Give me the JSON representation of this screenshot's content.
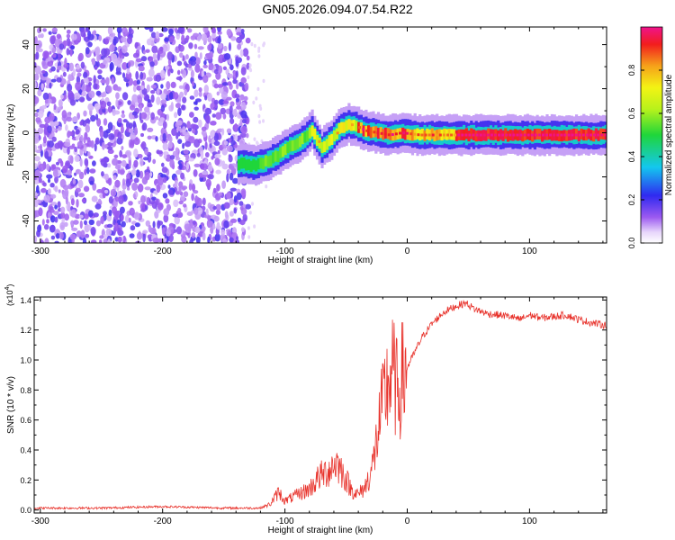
{
  "title": "GN05.2026.094.07.54.R22",
  "colorbar": {
    "label": "Normalized spectral amplitude",
    "ticks": [
      "0.0",
      "0.2",
      "0.4",
      "0.6",
      "0.8"
    ],
    "range": [
      0,
      1
    ]
  },
  "chart_data": [
    {
      "type": "heatmap",
      "xlabel": "Height of straight line (km)",
      "ylabel": "Frequency (Hz)",
      "xlim": [
        -305,
        163
      ],
      "ylim": [
        -50,
        48
      ],
      "xticks": [
        "-300",
        "-200",
        "-100",
        "0",
        "100"
      ],
      "yticks": [
        "40",
        "20",
        "0",
        "-20",
        "-40"
      ],
      "ridge": {
        "x": [
          -136,
          -125,
          -115,
          -105,
          -95,
          -85,
          -78,
          -70,
          -62,
          -55,
          -48,
          -42,
          -35,
          -25,
          -15,
          -5,
          10,
          30,
          60,
          90,
          120,
          163
        ],
        "y": [
          -14,
          -15,
          -13,
          -10,
          -6,
          -3,
          1,
          -7,
          -3,
          2,
          4,
          3,
          1,
          0,
          -1,
          0,
          -1,
          -1,
          -1,
          -1,
          -1,
          -1
        ]
      },
      "noise_region_x": [
        -305,
        -130
      ],
      "noise_region_y": [
        -50,
        48
      ]
    },
    {
      "type": "line",
      "xlabel": "Height of straight line (km)",
      "ylabel": "SNR (10 * v/v)",
      "multiplier": "(x10",
      "multiplier_exp": "4",
      "xlim": [
        -305,
        163
      ],
      "ylim": [
        -0.02,
        1.42
      ],
      "xticks": [
        "-300",
        "-200",
        "-100",
        "0",
        "100"
      ],
      "yticks": [
        "0.0",
        "0.2",
        "0.4",
        "0.6",
        "0.8",
        "1.0",
        "1.2",
        "1.4"
      ],
      "series": [
        {
          "color": "#e8332c",
          "x": [
            -305,
            -250,
            -200,
            -150,
            -120,
            -112,
            -105,
            -100,
            -90,
            -80,
            -72,
            -65,
            -58,
            -52,
            -46,
            -40,
            -34,
            -28,
            -24,
            -20,
            -16,
            -12,
            -8,
            -4,
            0,
            6,
            12,
            20,
            30,
            40,
            48,
            55,
            65,
            75,
            85,
            92,
            100,
            110,
            120,
            130,
            140,
            150,
            163
          ],
          "y": [
            0.01,
            0.01,
            0.02,
            0.01,
            0.01,
            0.04,
            0.12,
            0.06,
            0.1,
            0.14,
            0.22,
            0.26,
            0.32,
            0.24,
            0.14,
            0.1,
            0.16,
            0.3,
            0.52,
            0.7,
            0.84,
            0.92,
            0.78,
            0.88,
            0.95,
            1.05,
            1.15,
            1.24,
            1.32,
            1.36,
            1.38,
            1.34,
            1.31,
            1.3,
            1.29,
            1.27,
            1.3,
            1.28,
            1.29,
            1.3,
            1.27,
            1.25,
            1.23
          ]
        }
      ]
    }
  ]
}
